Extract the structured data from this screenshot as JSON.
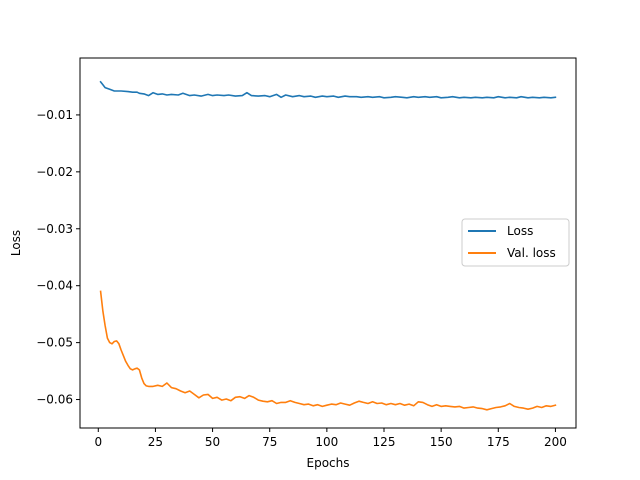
{
  "chart_data": {
    "type": "line",
    "title": "",
    "xlabel": "Epochs",
    "ylabel": "Loss",
    "xlim": [
      -8,
      209
    ],
    "ylim": [
      -0.065,
      0.0
    ],
    "xticks": [
      0,
      25,
      50,
      75,
      100,
      125,
      150,
      175,
      200
    ],
    "xtick_labels": [
      "0",
      "25",
      "50",
      "75",
      "100",
      "125",
      "150",
      "175",
      "200"
    ],
    "yticks": [
      -0.06,
      -0.05,
      -0.04,
      -0.03,
      -0.02,
      -0.01
    ],
    "ytick_labels": [
      "−0.06",
      "−0.05",
      "−0.04",
      "−0.03",
      "−0.02",
      "−0.01"
    ],
    "grid": false,
    "legend_position": "center-right",
    "series": [
      {
        "name": "Loss",
        "color": "#1f77b4",
        "x": [
          1,
          2,
          3,
          5,
          7,
          10,
          13,
          15,
          17,
          18,
          20,
          22,
          24,
          26,
          28,
          30,
          32,
          35,
          37,
          40,
          42,
          45,
          48,
          50,
          52,
          55,
          57,
          60,
          63,
          65,
          67,
          70,
          73,
          75,
          78,
          80,
          82,
          85,
          88,
          90,
          93,
          95,
          98,
          100,
          103,
          105,
          108,
          110,
          113,
          115,
          118,
          120,
          123,
          125,
          128,
          130,
          133,
          135,
          138,
          140,
          143,
          145,
          148,
          150,
          153,
          155,
          158,
          160,
          163,
          165,
          168,
          170,
          173,
          175,
          178,
          180,
          183,
          185,
          188,
          190,
          193,
          195,
          198,
          200
        ],
        "values": [
          -0.0042,
          -0.0047,
          -0.0052,
          -0.0055,
          -0.0058,
          -0.0058,
          -0.0059,
          -0.006,
          -0.006,
          -0.0062,
          -0.0063,
          -0.0066,
          -0.0061,
          -0.0064,
          -0.0063,
          -0.0065,
          -0.0064,
          -0.0065,
          -0.0062,
          -0.0066,
          -0.0065,
          -0.0067,
          -0.0064,
          -0.0066,
          -0.0065,
          -0.0066,
          -0.0065,
          -0.0067,
          -0.0066,
          -0.0061,
          -0.0066,
          -0.0067,
          -0.0066,
          -0.0068,
          -0.0064,
          -0.0069,
          -0.0065,
          -0.0068,
          -0.0066,
          -0.0068,
          -0.0067,
          -0.0069,
          -0.0067,
          -0.0068,
          -0.0067,
          -0.0069,
          -0.0067,
          -0.0068,
          -0.0068,
          -0.0069,
          -0.0068,
          -0.0069,
          -0.0068,
          -0.007,
          -0.0069,
          -0.0068,
          -0.0069,
          -0.007,
          -0.0068,
          -0.0069,
          -0.0068,
          -0.0069,
          -0.0068,
          -0.007,
          -0.0069,
          -0.0068,
          -0.007,
          -0.0069,
          -0.007,
          -0.0069,
          -0.007,
          -0.0069,
          -0.007,
          -0.0068,
          -0.007,
          -0.0069,
          -0.007,
          -0.0068,
          -0.007,
          -0.0069,
          -0.007,
          -0.0069,
          -0.007,
          -0.0069
        ]
      },
      {
        "name": "Val. loss",
        "color": "#ff7f0e",
        "x": [
          1,
          2,
          3,
          4,
          5,
          6,
          7,
          8,
          9,
          10,
          11,
          12,
          13,
          14,
          15,
          16,
          17,
          18,
          19,
          20,
          21,
          22,
          24,
          26,
          28,
          30,
          32,
          34,
          36,
          38,
          40,
          42,
          44,
          46,
          48,
          50,
          52,
          54,
          56,
          58,
          60,
          62,
          64,
          66,
          68,
          70,
          72,
          74,
          76,
          78,
          80,
          82,
          84,
          86,
          88,
          90,
          92,
          94,
          96,
          98,
          100,
          102,
          104,
          106,
          108,
          110,
          112,
          114,
          116,
          118,
          120,
          122,
          124,
          126,
          128,
          130,
          132,
          134,
          136,
          138,
          140,
          142,
          144,
          146,
          148,
          150,
          152,
          154,
          156,
          158,
          160,
          162,
          164,
          166,
          168,
          170,
          172,
          174,
          176,
          178,
          180,
          182,
          184,
          186,
          188,
          190,
          192,
          194,
          196,
          198,
          200
        ],
        "values": [
          -0.041,
          -0.0445,
          -0.047,
          -0.0492,
          -0.05,
          -0.0502,
          -0.0498,
          -0.0497,
          -0.0502,
          -0.0513,
          -0.0523,
          -0.0533,
          -0.054,
          -0.0546,
          -0.0548,
          -0.0546,
          -0.0545,
          -0.0548,
          -0.0562,
          -0.0572,
          -0.0576,
          -0.0577,
          -0.0577,
          -0.0575,
          -0.0577,
          -0.0571,
          -0.0579,
          -0.0581,
          -0.0585,
          -0.0588,
          -0.0585,
          -0.0591,
          -0.0597,
          -0.0592,
          -0.0591,
          -0.0598,
          -0.0596,
          -0.0601,
          -0.0599,
          -0.0602,
          -0.0596,
          -0.0595,
          -0.0598,
          -0.0593,
          -0.0596,
          -0.0601,
          -0.0603,
          -0.0604,
          -0.0602,
          -0.0607,
          -0.0605,
          -0.0605,
          -0.0602,
          -0.0605,
          -0.0607,
          -0.0609,
          -0.0608,
          -0.0611,
          -0.0609,
          -0.0612,
          -0.061,
          -0.0608,
          -0.0609,
          -0.0606,
          -0.0608,
          -0.061,
          -0.0606,
          -0.0603,
          -0.0605,
          -0.0607,
          -0.0604,
          -0.0607,
          -0.0606,
          -0.0609,
          -0.0607,
          -0.0609,
          -0.0607,
          -0.061,
          -0.0608,
          -0.0611,
          -0.0604,
          -0.0605,
          -0.0609,
          -0.0612,
          -0.0609,
          -0.0612,
          -0.0611,
          -0.0612,
          -0.0613,
          -0.0612,
          -0.0615,
          -0.0614,
          -0.0613,
          -0.0615,
          -0.0616,
          -0.0618,
          -0.0616,
          -0.0614,
          -0.0613,
          -0.0611,
          -0.0607,
          -0.0612,
          -0.0614,
          -0.0615,
          -0.0617,
          -0.0615,
          -0.0612,
          -0.0614,
          -0.0611,
          -0.0612,
          -0.061
        ]
      }
    ]
  }
}
